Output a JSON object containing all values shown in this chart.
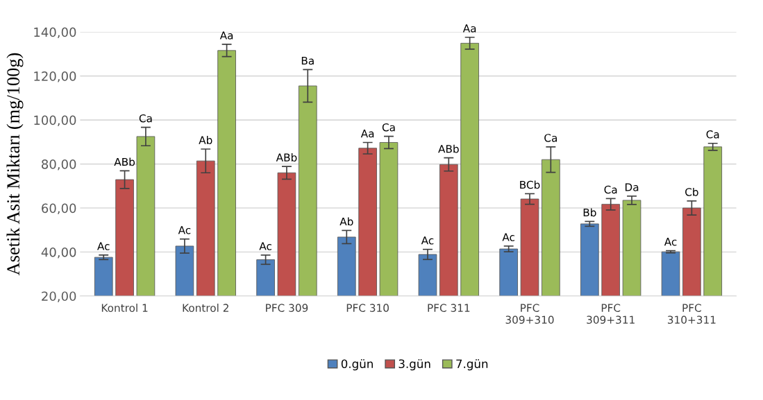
{
  "chart_data": {
    "type": "bar",
    "ylabel": "Asetik Asit Miktarı (mg/100g)",
    "categories": [
      "Kontrol 1",
      "Kontrol 2",
      "PFC 309",
      "PFC 310",
      "PFC 311",
      "PFC\n309+310",
      "PFC\n309+311",
      "PFC\n310+311"
    ],
    "series": [
      {
        "name": "0.gün",
        "color": "#4f81bd",
        "values": [
          37.6,
          42.7,
          36.5,
          46.8,
          38.9,
          41.4,
          52.8,
          40.1
        ],
        "errors": [
          1.0,
          3.2,
          2.1,
          3.0,
          2.3,
          1.3,
          1.1,
          0.5
        ],
        "value_labels": [
          "Ac",
          "Ac",
          "Ac",
          "Ab",
          "Ac",
          "Ac",
          "Bb",
          "Ac"
        ]
      },
      {
        "name": "3.gün",
        "color": "#c0504d",
        "values": [
          72.9,
          81.4,
          76.0,
          87.2,
          79.8,
          64.1,
          61.7,
          60.0
        ],
        "errors": [
          4.0,
          5.4,
          2.9,
          2.6,
          3.0,
          2.4,
          2.6,
          3.2
        ],
        "value_labels": [
          "ABb",
          "Ab",
          "ABb",
          "Aa",
          "ABb",
          "BCb",
          "Ca",
          "Cb"
        ]
      },
      {
        "name": "7.gün",
        "color": "#9bbb59",
        "values": [
          92.5,
          131.6,
          115.5,
          89.8,
          134.9,
          82.0,
          63.5,
          87.8
        ],
        "errors": [
          4.2,
          2.8,
          7.4,
          2.8,
          2.7,
          5.8,
          1.9,
          1.6
        ],
        "value_labels": [
          "Ca",
          "Aa",
          "Ba",
          "Ca",
          "Aa",
          "Ca",
          "Da",
          "Ca"
        ]
      }
    ],
    "ylim": [
      20,
      140
    ],
    "yticks": [
      {
        "value": 20,
        "label": "20,00"
      },
      {
        "value": 40,
        "label": "40,00"
      },
      {
        "value": 60,
        "label": "60,00"
      },
      {
        "value": 80,
        "label": "80,00"
      },
      {
        "value": 100,
        "label": "100,00"
      },
      {
        "value": 120,
        "label": "120,00"
      },
      {
        "value": 140,
        "label": "140,00"
      }
    ],
    "grid": "y",
    "legend": "bottom"
  }
}
